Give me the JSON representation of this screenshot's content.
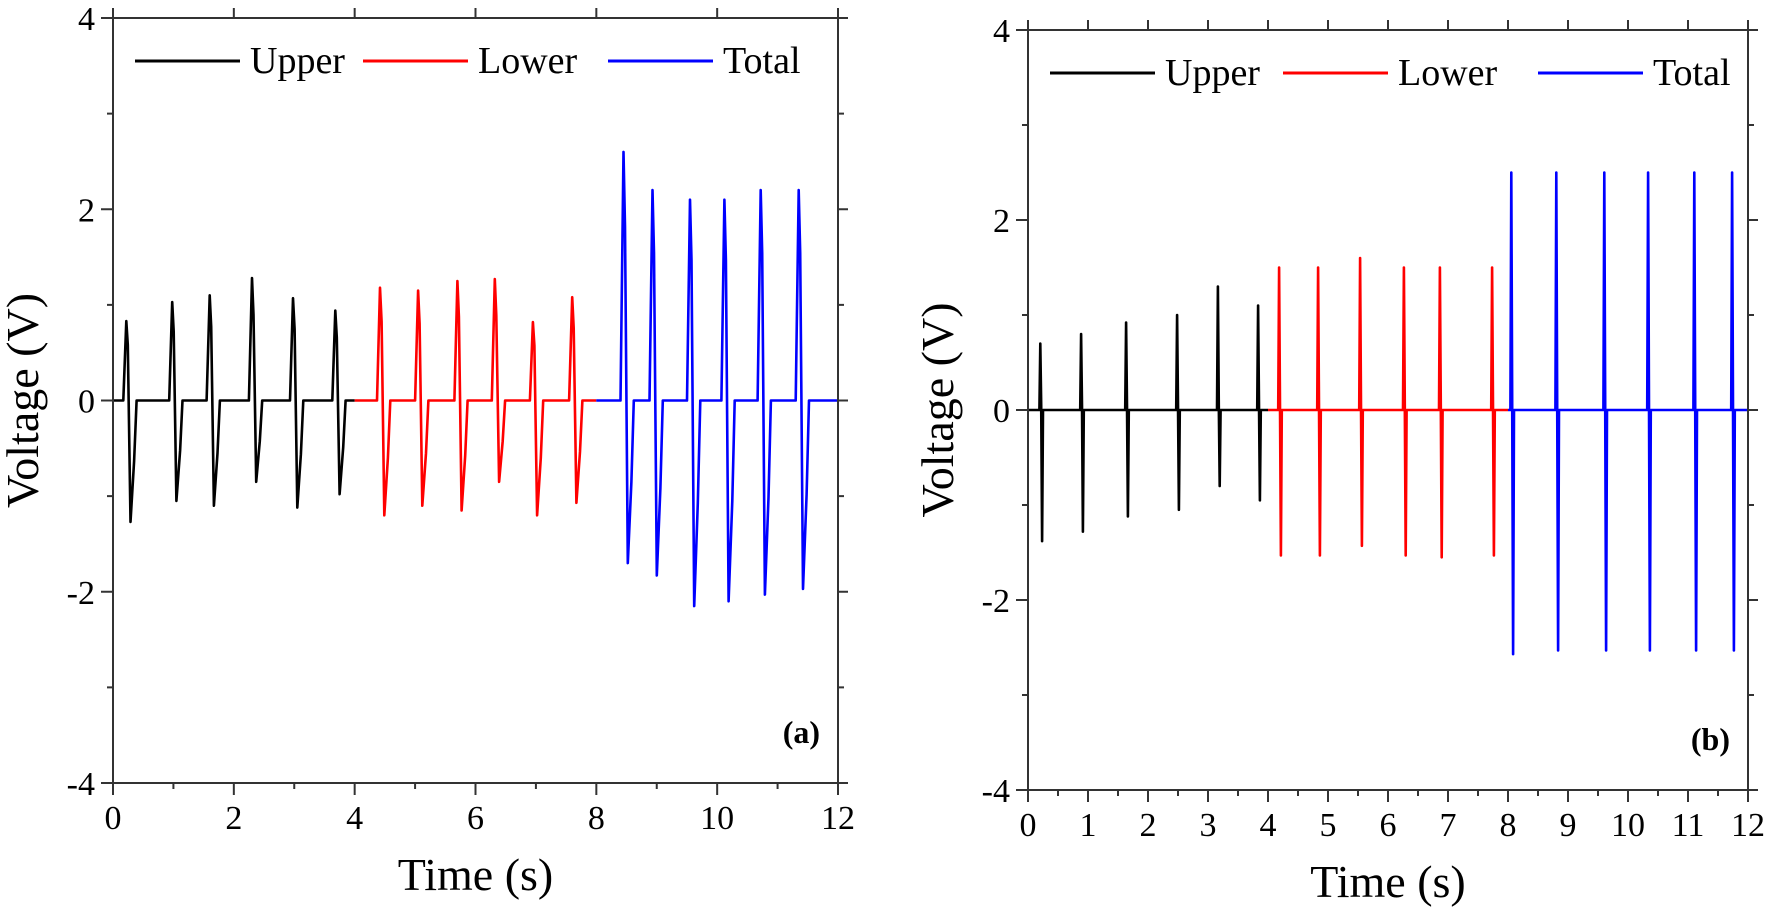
{
  "chart_data": [
    {
      "type": "line",
      "panel_label": "(a)",
      "xlabel": "Time (s)",
      "ylabel": "Voltage (V)",
      "xlim": [
        0,
        12
      ],
      "ylim": [
        -4,
        4
      ],
      "xticks": [
        "0",
        "2",
        "4",
        "6",
        "8",
        "10",
        "12"
      ],
      "yticks": [
        "-4",
        "-2",
        "0",
        "2",
        "4"
      ],
      "legend_placement": "top",
      "series": [
        {
          "name": "Upper",
          "color": "#000000",
          "pulses": [
            {
              "t": 0.22,
              "max": 0.83,
              "min": -1.27
            },
            {
              "t": 0.98,
              "max": 1.03,
              "min": -1.05
            },
            {
              "t": 1.6,
              "max": 1.1,
              "min": -1.1
            },
            {
              "t": 2.3,
              "max": 1.28,
              "min": -0.85
            },
            {
              "t": 2.98,
              "max": 1.07,
              "min": -1.12
            },
            {
              "t": 3.68,
              "max": 0.94,
              "min": -0.98
            }
          ]
        },
        {
          "name": "Lower",
          "color": "#ff0000",
          "pulses": [
            {
              "t": 4.42,
              "max": 1.18,
              "min": -1.2
            },
            {
              "t": 5.05,
              "max": 1.15,
              "min": -1.1
            },
            {
              "t": 5.7,
              "max": 1.25,
              "min": -1.15
            },
            {
              "t": 6.32,
              "max": 1.27,
              "min": -0.85
            },
            {
              "t": 6.95,
              "max": 0.82,
              "min": -1.2
            },
            {
              "t": 7.6,
              "max": 1.08,
              "min": -1.07
            }
          ]
        },
        {
          "name": "Total",
          "color": "#0000ff",
          "pulses": [
            {
              "t": 8.45,
              "max": 2.6,
              "min": -1.7
            },
            {
              "t": 8.93,
              "max": 2.2,
              "min": -1.83
            },
            {
              "t": 9.55,
              "max": 2.1,
              "min": -2.15
            },
            {
              "t": 10.12,
              "max": 2.1,
              "min": -2.1
            },
            {
              "t": 10.72,
              "max": 2.2,
              "min": -2.03
            },
            {
              "t": 11.35,
              "max": 2.2,
              "min": -1.97
            }
          ]
        }
      ]
    },
    {
      "type": "line",
      "panel_label": "(b)",
      "xlabel": "Time (s)",
      "ylabel": "Voltage (V)",
      "xlim": [
        0,
        12
      ],
      "ylim": [
        -4,
        4
      ],
      "xticks": [
        "0",
        "1",
        "2",
        "3",
        "4",
        "5",
        "6",
        "7",
        "8",
        "9",
        "10",
        "11",
        "12"
      ],
      "yticks": [
        "-4",
        "-2",
        "0",
        "2",
        "4"
      ],
      "legend_placement": "top",
      "series": [
        {
          "name": "Upper",
          "color": "#000000",
          "pulses": [
            {
              "t": 0.22,
              "max": 0.7,
              "min": -1.38
            },
            {
              "t": 0.9,
              "max": 0.8,
              "min": -1.28
            },
            {
              "t": 1.65,
              "max": 0.92,
              "min": -1.12
            },
            {
              "t": 2.5,
              "max": 1.0,
              "min": -1.05
            },
            {
              "t": 3.18,
              "max": 1.3,
              "min": -0.8
            },
            {
              "t": 3.85,
              "max": 1.1,
              "min": -0.95
            }
          ]
        },
        {
          "name": "Lower",
          "color": "#ff0000",
          "pulses": [
            {
              "t": 4.2,
              "max": 1.5,
              "min": -1.53
            },
            {
              "t": 4.85,
              "max": 1.5,
              "min": -1.53
            },
            {
              "t": 5.55,
              "max": 1.6,
              "min": -1.43
            },
            {
              "t": 6.28,
              "max": 1.5,
              "min": -1.53
            },
            {
              "t": 6.88,
              "max": 1.5,
              "min": -1.55
            },
            {
              "t": 7.75,
              "max": 1.5,
              "min": -1.53
            }
          ]
        },
        {
          "name": "Total",
          "color": "#0000ff",
          "pulses": [
            {
              "t": 8.07,
              "max": 2.5,
              "min": -2.57
            },
            {
              "t": 8.82,
              "max": 2.5,
              "min": -2.53
            },
            {
              "t": 9.62,
              "max": 2.5,
              "min": -2.53
            },
            {
              "t": 10.35,
              "max": 2.5,
              "min": -2.53
            },
            {
              "t": 11.12,
              "max": 2.5,
              "min": -2.53
            },
            {
              "t": 11.75,
              "max": 2.5,
              "min": -2.53
            }
          ]
        }
      ]
    }
  ]
}
